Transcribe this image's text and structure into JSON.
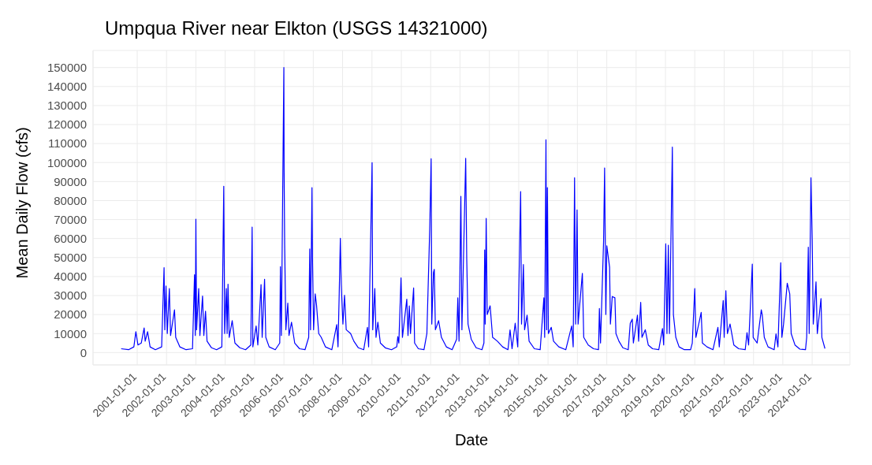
{
  "chart_data": {
    "type": "line",
    "title": "Umpqua River near Elkton (USGS 14321000)",
    "xlabel": "Date",
    "ylabel": "Mean Daily Flow (cfs)",
    "x": [
      "2000-06-15",
      "2000-09-15",
      "2000-11-20",
      "2000-12-15",
      "2001-01-10",
      "2001-02-20",
      "2001-03-28",
      "2001-04-10",
      "2001-05-10",
      "2001-06-10",
      "2001-08-15",
      "2001-11-01",
      "2001-12-01",
      "2001-12-10",
      "2001-12-25",
      "2002-01-10",
      "2002-02-05",
      "2002-02-20",
      "2002-04-10",
      "2002-04-25",
      "2002-06-15",
      "2002-09-01",
      "2002-11-20",
      "2002-12-15",
      "2002-12-25",
      "2003-01-01",
      "2003-01-10",
      "2003-02-05",
      "2003-02-20",
      "2003-03-25",
      "2003-04-10",
      "2003-05-01",
      "2003-05-20",
      "2003-07-15",
      "2003-09-15",
      "2003-11-20",
      "2003-12-14",
      "2003-12-25",
      "2004-01-15",
      "2004-01-25",
      "2004-02-05",
      "2004-02-20",
      "2004-03-28",
      "2004-05-01",
      "2004-07-01",
      "2004-09-10",
      "2004-11-15",
      "2004-12-01",
      "2004-12-10",
      "2005-01-20",
      "2005-02-10",
      "2005-03-22",
      "2005-04-05",
      "2005-05-05",
      "2005-05-20",
      "2005-07-01",
      "2005-09-15",
      "2005-11-10",
      "2005-11-18",
      "2005-11-30",
      "2005-12-31",
      "2006-01-03",
      "2006-01-10",
      "2006-01-25",
      "2006-02-18",
      "2006-03-05",
      "2006-04-05",
      "2006-05-15",
      "2006-07-15",
      "2006-09-20",
      "2006-11-05",
      "2006-11-18",
      "2006-11-28",
      "2006-12-16",
      "2006-12-22",
      "2007-01-05",
      "2007-01-25",
      "2007-02-10",
      "2007-03-10",
      "2007-04-10",
      "2007-06-01",
      "2007-08-20",
      "2007-10-20",
      "2007-11-05",
      "2007-11-20",
      "2007-12-04",
      "2007-12-15",
      "2008-01-05",
      "2008-01-25",
      "2008-02-15",
      "2008-04-10",
      "2008-05-20",
      "2008-07-15",
      "2008-09-20",
      "2008-11-05",
      "2008-11-20",
      "2009-01-02",
      "2009-01-10",
      "2009-02-05",
      "2009-02-20",
      "2009-03-15",
      "2009-04-15",
      "2009-06-15",
      "2009-09-01",
      "2009-11-05",
      "2009-11-18",
      "2009-12-01",
      "2009-12-28",
      "2010-01-15",
      "2010-03-10",
      "2010-03-25",
      "2010-04-10",
      "2010-04-25",
      "2010-06-03",
      "2010-06-15",
      "2010-08-01",
      "2010-10-10",
      "2010-11-15",
      "2010-12-20",
      "2011-01-07",
      "2011-01-15",
      "2011-02-05",
      "2011-02-15",
      "2011-03-01",
      "2011-04-10",
      "2011-05-15",
      "2011-07-15",
      "2011-09-25",
      "2011-11-20",
      "2011-12-05",
      "2011-12-20",
      "2012-01-12",
      "2012-01-25",
      "2012-03-12",
      "2012-03-25",
      "2012-04-10",
      "2012-05-20",
      "2012-07-20",
      "2012-09-30",
      "2012-10-25",
      "2012-11-03",
      "2012-11-10",
      "2012-11-22",
      "2012-12-05",
      "2013-01-10",
      "2013-02-10",
      "2013-04-10",
      "2013-06-15",
      "2013-08-20",
      "2013-09-15",
      "2013-10-10",
      "2013-11-18",
      "2013-12-20",
      "2014-01-25",
      "2014-02-05",
      "2014-02-28",
      "2014-03-15",
      "2014-04-15",
      "2014-05-10",
      "2014-07-15",
      "2014-09-25",
      "2014-11-10",
      "2014-11-20",
      "2014-12-06",
      "2014-12-15",
      "2014-12-24",
      "2015-01-05",
      "2015-02-10",
      "2015-03-10",
      "2015-05-15",
      "2015-08-10",
      "2015-10-22",
      "2015-11-10",
      "2015-11-27",
      "2015-12-10",
      "2015-12-28",
      "2016-01-10",
      "2016-03-03",
      "2016-03-20",
      "2016-05-15",
      "2016-07-20",
      "2016-09-20",
      "2016-10-01",
      "2016-10-15",
      "2016-11-22",
      "2016-12-05",
      "2016-12-20",
      "2017-01-01",
      "2017-02-05",
      "2017-02-15",
      "2017-03-10",
      "2017-04-12",
      "2017-04-25",
      "2017-06-01",
      "2017-07-20",
      "2017-09-25",
      "2017-10-20",
      "2017-11-14",
      "2017-11-28",
      "2018-01-18",
      "2018-02-01",
      "2018-02-27",
      "2018-03-15",
      "2018-04-25",
      "2018-06-01",
      "2018-07-25",
      "2018-10-10",
      "2018-11-25",
      "2018-12-10",
      "2019-01-05",
      "2019-01-20",
      "2019-02-06",
      "2019-02-20",
      "2019-03-28",
      "2019-04-10",
      "2019-05-10",
      "2019-06-20",
      "2019-08-25",
      "2019-11-10",
      "2019-12-01",
      "2020-01-01",
      "2020-01-15",
      "2020-03-21",
      "2020-04-05",
      "2020-06-01",
      "2020-08-15",
      "2020-10-15",
      "2020-11-01",
      "2020-12-20",
      "2021-01-01",
      "2021-01-22",
      "2021-02-10",
      "2021-03-15",
      "2021-05-01",
      "2021-07-01",
      "2021-09-20",
      "2021-10-12",
      "2021-11-01",
      "2021-12-17",
      "2021-12-28",
      "2022-02-15",
      "2022-04-08",
      "2022-04-20",
      "2022-05-15",
      "2022-07-01",
      "2022-09-15",
      "2022-10-08",
      "2022-11-01",
      "2022-12-06",
      "2022-12-20",
      "2023-01-10",
      "2023-02-25",
      "2023-03-28",
      "2023-04-15",
      "2023-06-01",
      "2023-08-01",
      "2023-10-10",
      "2023-10-25",
      "2023-11-14",
      "2023-11-25",
      "2023-12-17",
      "2024-01-01",
      "2024-01-15",
      "2024-02-18",
      "2024-03-05",
      "2024-04-20",
      "2024-05-01",
      "2024-06-08"
    ],
    "series": [
      {
        "color": "#0000ff",
        "values": [
          2000,
          1500,
          3000,
          11000,
          4000,
          5000,
          13000,
          6000,
          11000,
          3000,
          1500,
          3000,
          44700,
          12000,
          35000,
          10000,
          33700,
          9000,
          22500,
          8000,
          3000,
          1500,
          2000,
          41000,
          9000,
          70200,
          12000,
          33700,
          9000,
          29800,
          9000,
          21800,
          6000,
          2500,
          1500,
          3000,
          87500,
          10000,
          33700,
          10000,
          36000,
          8000,
          16800,
          5000,
          2500,
          1500,
          4000,
          66000,
          3000,
          14000,
          4000,
          35800,
          8000,
          38600,
          8000,
          3000,
          1500,
          5000,
          45200,
          9000,
          150000,
          96200,
          56900,
          12000,
          26000,
          9000,
          16000,
          5000,
          2000,
          1500,
          8000,
          54500,
          12000,
          86800,
          50000,
          12000,
          30900,
          25300,
          10000,
          8000,
          3000,
          1500,
          14700,
          3000,
          31200,
          60100,
          35800,
          15000,
          30200,
          12000,
          10000,
          6000,
          2500,
          1500,
          13300,
          3000,
          100000,
          12000,
          33700,
          8000,
          16000,
          5000,
          2500,
          1500,
          3000,
          8400,
          5000,
          39300,
          8000,
          28100,
          9000,
          24600,
          10000,
          34000,
          5000,
          2000,
          1500,
          10000,
          64600,
          102000,
          15000,
          42100,
          43800,
          12000,
          16800,
          8000,
          3000,
          1500,
          7000,
          28800,
          6000,
          82200,
          12000,
          102200,
          49200,
          15000,
          7000,
          2500,
          1500,
          5000,
          54000,
          15000,
          70600,
          20000,
          24600,
          8000,
          6000,
          3000,
          1500,
          11900,
          2000,
          15400,
          3000,
          84700,
          15000,
          46300,
          12000,
          19700,
          6000,
          2000,
          1500,
          28800,
          8000,
          112000,
          12000,
          86800,
          10000,
          13300,
          6000,
          3000,
          1500,
          14000,
          3000,
          92000,
          15000,
          75100,
          15000,
          41700,
          8000,
          4000,
          2000,
          1500,
          23200,
          5000,
          58300,
          97200,
          20000,
          56200,
          44900,
          15000,
          29500,
          28800,
          10000,
          6000,
          2500,
          1500,
          15400,
          17600,
          5000,
          19700,
          6000,
          26400,
          8000,
          12000,
          4000,
          2000,
          1500,
          12600,
          4000,
          57200,
          10000,
          56500,
          10000,
          108100,
          20000,
          8000,
          3000,
          1500,
          1500,
          5000,
          33700,
          8000,
          21100,
          5000,
          3000,
          1500,
          13300,
          3000,
          27400,
          8000,
          32600,
          10000,
          15000,
          4000,
          2000,
          1500,
          10500,
          4000,
          46600,
          8000,
          5000,
          22500,
          19700,
          8000,
          3000,
          1500,
          9800,
          3000,
          47300,
          8000,
          15000,
          36500,
          30900,
          10000,
          4000,
          1800,
          1500,
          8000,
          55500,
          10000,
          92000,
          60100,
          15000,
          37200,
          10000,
          28400,
          8000,
          2100
        ]
      }
    ],
    "xlim": [
      "1999-07-01",
      "2025-04-15"
    ],
    "xticks": [
      "2001-01-01",
      "2002-01-01",
      "2003-01-01",
      "2004-01-01",
      "2005-01-01",
      "2006-01-01",
      "2007-01-01",
      "2008-01-01",
      "2009-01-01",
      "2010-01-01",
      "2011-01-01",
      "2012-01-01",
      "2013-01-01",
      "2014-01-01",
      "2015-01-01",
      "2016-01-01",
      "2017-01-01",
      "2018-01-01",
      "2019-01-01",
      "2020-01-01",
      "2021-01-01",
      "2022-01-01",
      "2023-01-01",
      "2024-01-01"
    ],
    "ylim": [
      -6500,
      159000
    ],
    "yticks": [
      0,
      10000,
      20000,
      30000,
      40000,
      50000,
      60000,
      70000,
      80000,
      90000,
      100000,
      110000,
      120000,
      130000,
      140000,
      150000
    ],
    "grid": true,
    "marker": "none",
    "line_style": "solid"
  }
}
